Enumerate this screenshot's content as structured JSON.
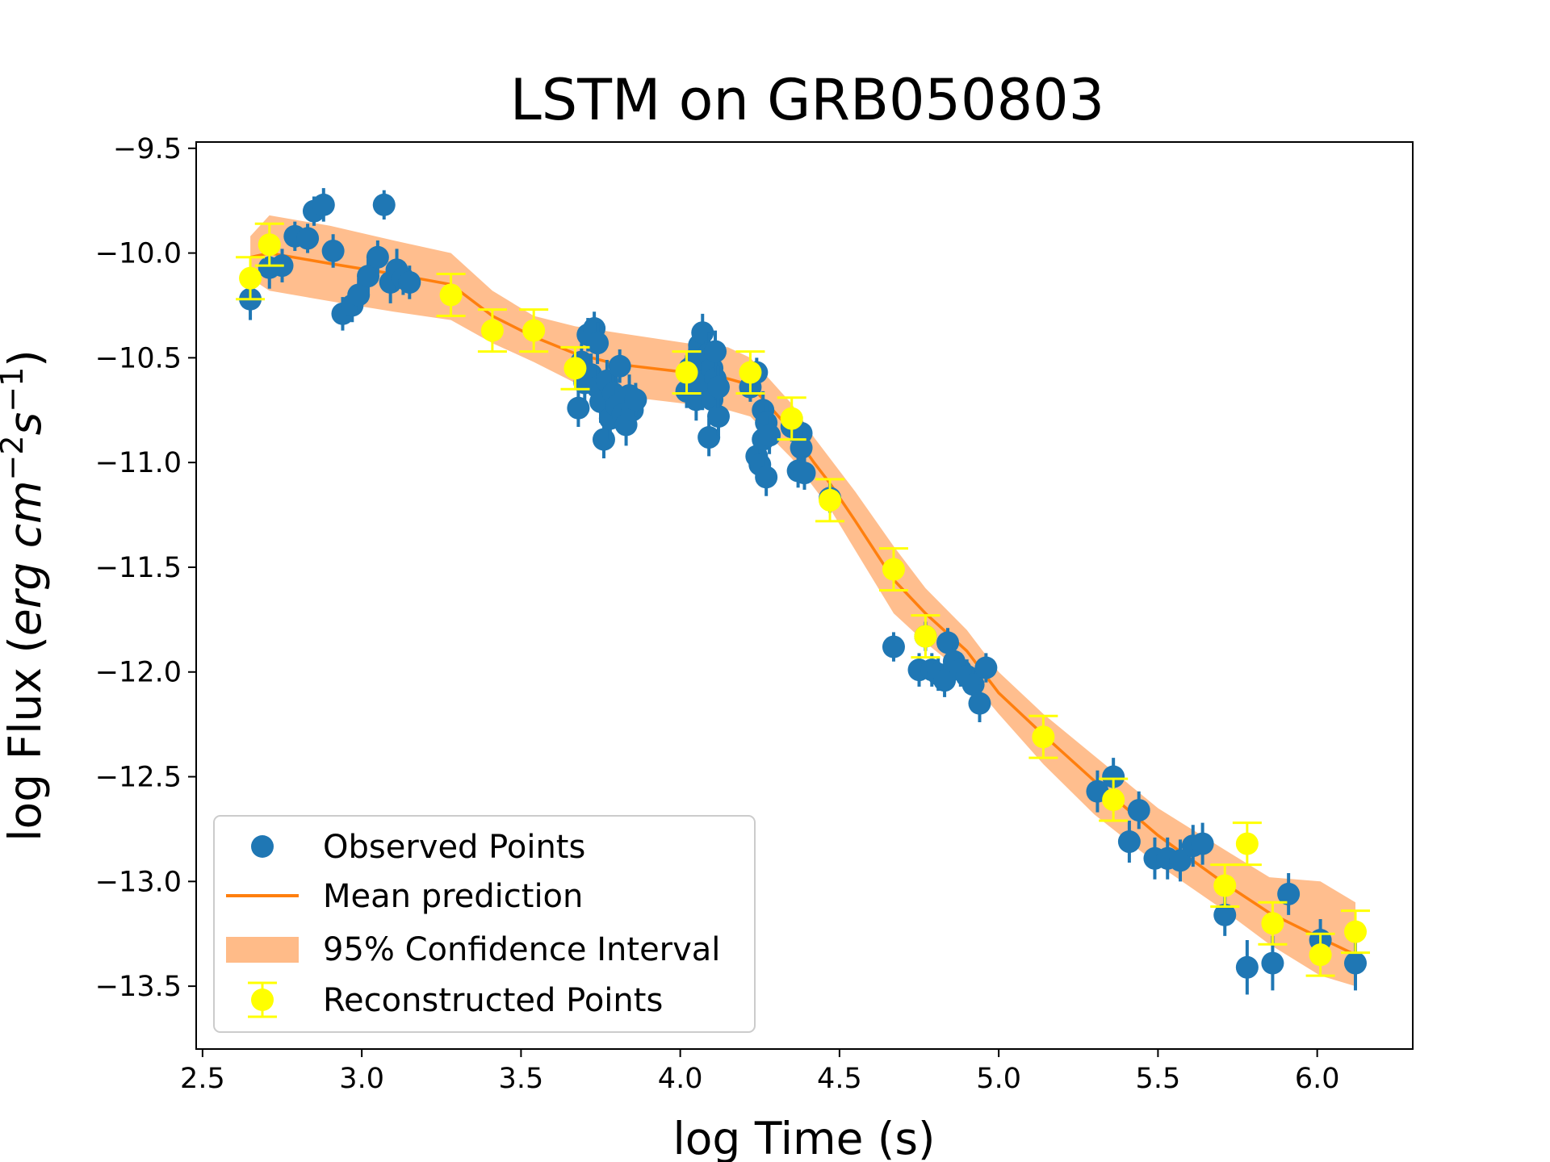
{
  "chart_data": {
    "type": "scatter",
    "title": "LSTM on GRB050803",
    "xlabel": "log Time (s)",
    "ylabel": {
      "prefix": "log Flux (",
      "unit_erg": "erg",
      "unit_cm": "cm",
      "exp_cm": "−2",
      "unit_s": "s",
      "exp_s": "−1",
      "suffix": ")"
    },
    "xlim": [
      2.48,
      6.3
    ],
    "ylim": [
      -13.8,
      -9.47
    ],
    "xticks": [
      2.5,
      3.0,
      3.5,
      4.0,
      4.5,
      5.0,
      5.5,
      6.0
    ],
    "xtick_labels": [
      "2.5",
      "3.0",
      "3.5",
      "4.0",
      "4.5",
      "5.0",
      "5.5",
      "6.0"
    ],
    "yticks": [
      -9.5,
      -10.0,
      -10.5,
      -11.0,
      -11.5,
      -12.0,
      -12.5,
      -13.0,
      -13.5
    ],
    "ytick_labels": [
      "−9.5",
      "−10.0",
      "−10.5",
      "−11.0",
      "−11.5",
      "−12.0",
      "−12.5",
      "−13.0",
      "−13.5"
    ],
    "colors": {
      "observed": "#1f77b4",
      "mean": "#ff7f0e",
      "band": "#ffbb88",
      "reconstructed": "#ffff00"
    },
    "legend": {
      "location": "lower-left",
      "entries": [
        "Observed Points",
        "Mean prediction",
        "95% Confidence Interval",
        "Reconstructed Points"
      ]
    },
    "series": [
      {
        "name": "Observed Points",
        "points": [
          [
            2.65,
            -10.22,
            0.1
          ],
          [
            2.71,
            -10.07,
            0.1
          ],
          [
            2.75,
            -10.06,
            0.08
          ],
          [
            2.79,
            -9.92,
            0.07
          ],
          [
            2.83,
            -9.93,
            0.07
          ],
          [
            2.85,
            -9.8,
            0.07
          ],
          [
            2.88,
            -9.77,
            0.08
          ],
          [
            2.91,
            -9.99,
            0.08
          ],
          [
            2.94,
            -10.29,
            0.08
          ],
          [
            2.97,
            -10.25,
            0.08
          ],
          [
            2.99,
            -10.2,
            0.08
          ],
          [
            3.02,
            -10.11,
            0.08
          ],
          [
            3.05,
            -10.02,
            0.08
          ],
          [
            3.07,
            -9.77,
            0.07
          ],
          [
            3.09,
            -10.14,
            0.1
          ],
          [
            3.11,
            -10.08,
            0.1
          ],
          [
            3.13,
            -10.12,
            0.08
          ],
          [
            3.15,
            -10.14,
            0.08
          ],
          [
            3.68,
            -10.74,
            0.09
          ],
          [
            3.69,
            -10.52,
            0.09
          ],
          [
            3.7,
            -10.62,
            0.09
          ],
          [
            3.71,
            -10.39,
            0.08
          ],
          [
            3.72,
            -10.58,
            0.1
          ],
          [
            3.73,
            -10.36,
            0.08
          ],
          [
            3.74,
            -10.64,
            0.1
          ],
          [
            3.74,
            -10.43,
            0.1
          ],
          [
            3.75,
            -10.71,
            0.1
          ],
          [
            3.76,
            -10.89,
            0.09
          ],
          [
            3.77,
            -10.61,
            0.1
          ],
          [
            3.78,
            -10.79,
            0.1
          ],
          [
            3.79,
            -10.67,
            0.1
          ],
          [
            3.8,
            -10.73,
            0.1
          ],
          [
            3.81,
            -10.54,
            0.08
          ],
          [
            3.82,
            -10.77,
            0.1
          ],
          [
            3.83,
            -10.82,
            0.1
          ],
          [
            3.84,
            -10.68,
            0.1
          ],
          [
            3.85,
            -10.75,
            0.1
          ],
          [
            3.86,
            -10.7,
            0.08
          ],
          [
            4.02,
            -10.66,
            0.08
          ],
          [
            4.03,
            -10.55,
            0.1
          ],
          [
            4.04,
            -10.6,
            0.1
          ],
          [
            4.05,
            -10.5,
            0.1
          ],
          [
            4.05,
            -10.7,
            0.1
          ],
          [
            4.06,
            -10.44,
            0.1
          ],
          [
            4.06,
            -10.58,
            0.1
          ],
          [
            4.07,
            -10.65,
            0.1
          ],
          [
            4.07,
            -10.38,
            0.09
          ],
          [
            4.08,
            -10.52,
            0.1
          ],
          [
            4.08,
            -10.61,
            0.1
          ],
          [
            4.09,
            -10.48,
            0.1
          ],
          [
            4.09,
            -10.88,
            0.09
          ],
          [
            4.1,
            -10.55,
            0.1
          ],
          [
            4.1,
            -10.7,
            0.1
          ],
          [
            4.11,
            -10.6,
            0.1
          ],
          [
            4.11,
            -10.47,
            0.1
          ],
          [
            4.12,
            -10.78,
            0.09
          ],
          [
            4.12,
            -10.64,
            0.1
          ],
          [
            4.22,
            -10.64,
            0.07
          ],
          [
            4.24,
            -10.57,
            0.07
          ],
          [
            4.24,
            -10.97,
            0.09
          ],
          [
            4.25,
            -11.01,
            0.09
          ],
          [
            4.26,
            -10.75,
            0.09
          ],
          [
            4.26,
            -10.89,
            0.09
          ],
          [
            4.27,
            -10.81,
            0.09
          ],
          [
            4.27,
            -11.07,
            0.09
          ],
          [
            4.28,
            -10.87,
            0.09
          ],
          [
            4.35,
            -10.83,
            0.07
          ],
          [
            4.37,
            -11.04,
            0.08
          ],
          [
            4.38,
            -10.86,
            0.08
          ],
          [
            4.38,
            -10.93,
            0.08
          ],
          [
            4.39,
            -11.05,
            0.08
          ],
          [
            4.47,
            -11.17,
            0.07
          ],
          [
            4.67,
            -11.88,
            0.07
          ],
          [
            4.75,
            -11.99,
            0.08
          ],
          [
            4.77,
            -11.83,
            0.07
          ],
          [
            4.79,
            -11.99,
            0.08
          ],
          [
            4.81,
            -12.01,
            0.08
          ],
          [
            4.83,
            -12.04,
            0.08
          ],
          [
            4.84,
            -11.86,
            0.07
          ],
          [
            4.86,
            -11.95,
            0.08
          ],
          [
            4.88,
            -11.99,
            0.08
          ],
          [
            4.9,
            -12.02,
            0.08
          ],
          [
            4.92,
            -12.06,
            0.08
          ],
          [
            4.94,
            -12.15,
            0.09
          ],
          [
            4.96,
            -11.98,
            0.07
          ],
          [
            5.31,
            -12.57,
            0.1
          ],
          [
            5.36,
            -12.5,
            0.09
          ],
          [
            5.41,
            -12.81,
            0.1
          ],
          [
            5.44,
            -12.66,
            0.09
          ],
          [
            5.49,
            -12.89,
            0.1
          ],
          [
            5.53,
            -12.89,
            0.1
          ],
          [
            5.57,
            -12.9,
            0.1
          ],
          [
            5.61,
            -12.83,
            0.1
          ],
          [
            5.64,
            -12.82,
            0.1
          ],
          [
            5.71,
            -13.16,
            0.1
          ],
          [
            5.78,
            -13.41,
            0.13
          ],
          [
            5.86,
            -13.39,
            0.13
          ],
          [
            5.91,
            -13.06,
            0.1
          ],
          [
            6.01,
            -13.28,
            0.1
          ],
          [
            6.12,
            -13.39,
            0.13
          ]
        ]
      },
      {
        "name": "Reconstructed Points",
        "points": [
          [
            2.65,
            -10.12,
            0.1
          ],
          [
            2.71,
            -9.96,
            0.1
          ],
          [
            3.28,
            -10.2,
            0.1
          ],
          [
            3.41,
            -10.37,
            0.1
          ],
          [
            3.54,
            -10.37,
            0.1
          ],
          [
            3.67,
            -10.55,
            0.1
          ],
          [
            4.02,
            -10.57,
            0.1
          ],
          [
            4.22,
            -10.57,
            0.1
          ],
          [
            4.35,
            -10.79,
            0.1
          ],
          [
            4.47,
            -11.18,
            0.1
          ],
          [
            4.67,
            -11.51,
            0.1
          ],
          [
            4.77,
            -11.83,
            0.1
          ],
          [
            5.14,
            -12.31,
            0.1
          ],
          [
            5.36,
            -12.61,
            0.1
          ],
          [
            5.71,
            -13.02,
            0.1
          ],
          [
            5.78,
            -12.82,
            0.1
          ],
          [
            5.86,
            -13.2,
            0.1
          ],
          [
            6.01,
            -13.35,
            0.1
          ],
          [
            6.12,
            -13.24,
            0.1
          ]
        ]
      },
      {
        "name": "Mean prediction",
        "x": [
          2.65,
          2.71,
          2.9,
          3.1,
          3.28,
          3.41,
          3.54,
          3.67,
          3.8,
          4.02,
          4.15,
          4.22,
          4.35,
          4.42,
          4.47,
          4.55,
          4.67,
          4.77,
          4.9,
          5.0,
          5.14,
          5.3,
          5.5,
          5.7,
          5.85,
          6.01,
          6.12
        ],
        "y": [
          -10.02,
          -10.0,
          -10.05,
          -10.1,
          -10.15,
          -10.3,
          -10.4,
          -10.48,
          -10.53,
          -10.57,
          -10.6,
          -10.63,
          -10.85,
          -11.0,
          -11.1,
          -11.28,
          -11.56,
          -11.72,
          -11.9,
          -12.1,
          -12.3,
          -12.52,
          -12.78,
          -13.0,
          -13.15,
          -13.27,
          -13.35
        ]
      },
      {
        "name": "95% Confidence Interval",
        "x": [
          2.65,
          2.71,
          2.9,
          3.1,
          3.28,
          3.41,
          3.54,
          3.67,
          3.8,
          4.02,
          4.15,
          4.22,
          4.35,
          4.42,
          4.47,
          4.55,
          4.67,
          4.77,
          4.9,
          5.0,
          5.14,
          5.3,
          5.5,
          5.7,
          5.85,
          6.01,
          6.12
        ],
        "upper": [
          -9.92,
          -9.82,
          -9.87,
          -9.94,
          -10.0,
          -10.18,
          -10.3,
          -10.35,
          -10.38,
          -10.43,
          -10.45,
          -10.5,
          -10.72,
          -10.88,
          -10.98,
          -11.14,
          -11.4,
          -11.6,
          -11.8,
          -12.0,
          -12.2,
          -12.4,
          -12.65,
          -12.84,
          -12.98,
          -13.0,
          -13.1
        ],
        "lower": [
          -10.12,
          -10.18,
          -10.23,
          -10.28,
          -10.32,
          -10.43,
          -10.52,
          -10.62,
          -10.68,
          -10.72,
          -10.75,
          -10.78,
          -10.98,
          -11.12,
          -11.22,
          -11.42,
          -11.72,
          -11.86,
          -12.02,
          -12.2,
          -12.44,
          -12.68,
          -12.92,
          -13.13,
          -13.3,
          -13.45,
          -13.5
        ]
      }
    ]
  }
}
